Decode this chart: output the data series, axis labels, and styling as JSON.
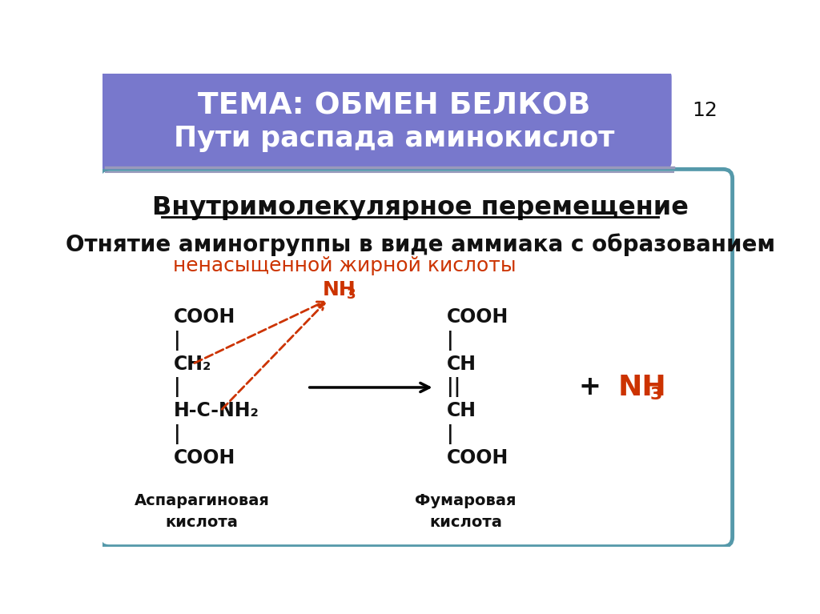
{
  "header_bg_color": "#7878CC",
  "header_text1": "ТЕМА: ОБМЕН БЕЛКОВ",
  "header_text2": "Пути распада аминокислот",
  "header_num": "12",
  "body_bg_color": "#FFFFFF",
  "border_color": "#5599AA",
  "title_underline": "Внутримолекулярное перемещение",
  "subtitle_black": "Отнятие аминогруппы в виде аммиака с образованием",
  "subtitle_red": "ненасыщенной жирной кислоты",
  "nh3_label": "NH",
  "nh3_sub": "3",
  "left_struct": [
    "COOH",
    "|",
    "CH₂",
    "|",
    "H-C-NH₂",
    "|",
    "COOH"
  ],
  "left_label1": "Аспарагиновая",
  "left_label2": "кислота",
  "right_struct": [
    "COOH",
    "|",
    "CH",
    "||",
    "CH",
    "|",
    "COOH"
  ],
  "right_label1": "Фумаровая",
  "right_label2": "кислота",
  "plus_text": "+",
  "nh3_right": "NH",
  "nh3_right_sub": "3",
  "arrow_color": "#CC3300",
  "red_text_color": "#CC3300",
  "black_text_color": "#111111",
  "white_text_color": "#FFFFFF",
  "line_color": "#9999BB",
  "fig_width": 10.24,
  "fig_height": 7.67,
  "dpi": 100
}
